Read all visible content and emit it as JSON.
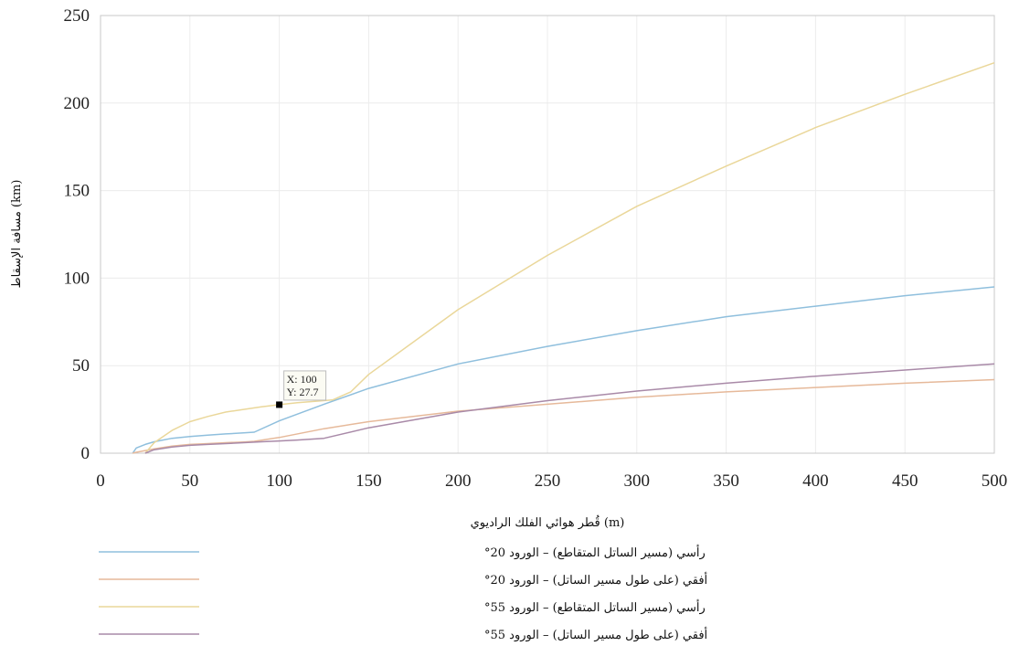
{
  "chart_data": {
    "type": "line",
    "xlabel": "قُطر هوائي الفلك الراديوي (m)",
    "ylabel": "مسافة الإسقاط (km)",
    "xlim": [
      0,
      500
    ],
    "ylim": [
      0,
      250
    ],
    "xticks": [
      "0",
      "50",
      "100",
      "150",
      "200",
      "250",
      "300",
      "350",
      "400",
      "450",
      "500"
    ],
    "yticks": [
      "0",
      "50",
      "100",
      "150",
      "200",
      "250"
    ],
    "grid": true,
    "legend_position": "bottom-left",
    "series": [
      {
        "name": "رأسي (مسير الساتل المتقاطع) – الورود 20°",
        "color": "#8fbfdd",
        "x": [
          18,
          20,
          25,
          30,
          40,
          50,
          60,
          70,
          80,
          86,
          100,
          125,
          150,
          200,
          250,
          300,
          350,
          400,
          450,
          500
        ],
        "y": [
          0,
          3,
          5,
          6.5,
          8.5,
          9.5,
          10.3,
          11,
          11.6,
          12,
          18.5,
          28,
          37,
          51,
          61,
          70,
          78,
          84,
          90,
          95
        ]
      },
      {
        "name": "أفقي (على طول مسير الساتل) – الورود 20°",
        "color": "#e6b99a",
        "x": [
          18,
          20,
          25,
          30,
          40,
          50,
          60,
          70,
          80,
          86,
          100,
          125,
          150,
          200,
          250,
          300,
          350,
          400,
          450,
          500
        ],
        "y": [
          0,
          0.5,
          1.5,
          2.5,
          4,
          5,
          5.5,
          6,
          6.4,
          6.8,
          9,
          14,
          18,
          24,
          28,
          32,
          35,
          37.5,
          40,
          42
        ]
      },
      {
        "name": "رأسي (مسير الساتل المتقاطع) – الورود 55°",
        "color": "#ead79a",
        "x": [
          25,
          30,
          40,
          50,
          60,
          70,
          80,
          90,
          100,
          110,
          120,
          130,
          140,
          150,
          200,
          250,
          300,
          350,
          400,
          450,
          500
        ],
        "y": [
          0,
          6,
          13,
          18,
          21,
          23.5,
          25,
          26.5,
          27.7,
          28.8,
          29.6,
          30.5,
          35,
          45,
          82,
          113,
          141,
          164,
          186,
          205,
          223
        ]
      },
      {
        "name": "أفقي (على طول مسير الساتل) – الورود 55°",
        "color": "#a98aa8",
        "x": [
          25,
          30,
          40,
          50,
          60,
          70,
          80,
          90,
          100,
          110,
          125,
          150,
          200,
          250,
          300,
          350,
          400,
          450,
          500
        ],
        "y": [
          0,
          2,
          3.5,
          4.5,
          5,
          5.5,
          6,
          6.5,
          7,
          7.5,
          8.5,
          14.5,
          23.5,
          30,
          35.5,
          40,
          44,
          47.5,
          51
        ]
      }
    ],
    "annotation": {
      "x": 100,
      "y": 27.7,
      "line1": "X: 100",
      "line2": "Y: 27.7"
    }
  }
}
